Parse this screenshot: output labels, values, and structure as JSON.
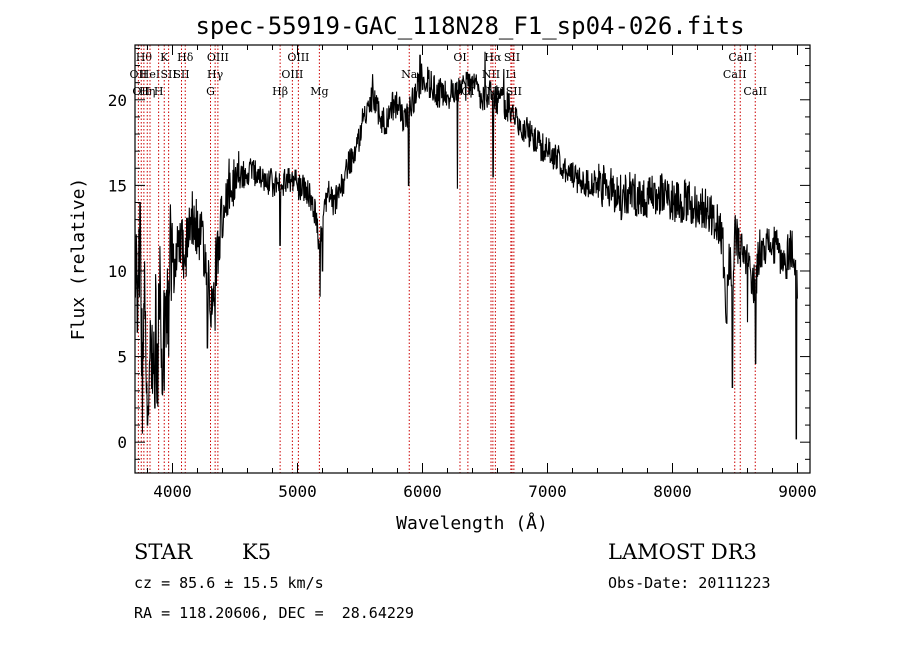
{
  "chart_data": {
    "type": "line",
    "title": "spec-55919-GAC_118N28_F1_sp04-026.fits",
    "xlabel": "Wavelength (Å)",
    "ylabel": "Flux (relative)",
    "xlim": [
      3700,
      9100
    ],
    "ylim": [
      -1.8,
      23.2
    ],
    "xticks": [
      4000,
      5000,
      6000,
      7000,
      8000,
      9000
    ],
    "yticks": [
      0,
      5,
      10,
      15,
      20
    ],
    "grid": false,
    "line_color": "#000000",
    "marker_color": "#cc0000",
    "spectrum_anchors": {
      "x": [
        3700,
        3720,
        3740,
        3760,
        3780,
        3800,
        3820,
        3840,
        3860,
        3880,
        3900,
        3920,
        3940,
        3960,
        3980,
        4000,
        4050,
        4100,
        4150,
        4200,
        4250,
        4300,
        4320,
        4340,
        4380,
        4420,
        4500,
        4600,
        4700,
        4800,
        4850,
        4900,
        5000,
        5100,
        5150,
        5180,
        5200,
        5250,
        5300,
        5400,
        5500,
        5550,
        5600,
        5650,
        5700,
        5750,
        5800,
        5850,
        5900,
        5950,
        6000,
        6050,
        6100,
        6200,
        6300,
        6400,
        6500,
        6560,
        6600,
        6700,
        6800,
        6900,
        7000,
        7100,
        7200,
        7300,
        7400,
        7500,
        7600,
        7700,
        7800,
        7900,
        8000,
        8100,
        8200,
        8300,
        8400,
        8430,
        8450,
        8480,
        8500,
        8540,
        8600,
        8660,
        8700,
        8800,
        8900,
        8950,
        9000
      ],
      "y": [
        12,
        9,
        11.5,
        4,
        9,
        2,
        7,
        3,
        8,
        4,
        9,
        5,
        10,
        7,
        11,
        10,
        12,
        11,
        13,
        12.5,
        11.5,
        9,
        7.5,
        10,
        12.5,
        14.5,
        15.5,
        15.8,
        15.5,
        15.2,
        14.8,
        15.3,
        15,
        14.5,
        13,
        11,
        13.5,
        14.5,
        14,
        16,
        18,
        19.5,
        20,
        19.2,
        18.5,
        19.5,
        19.8,
        18.5,
        19.5,
        20.5,
        21.5,
        21,
        20.5,
        20.2,
        20.5,
        21,
        20,
        20.5,
        20,
        19.5,
        18.5,
        17.5,
        17,
        16.5,
        15.5,
        15.2,
        15,
        14.8,
        14.5,
        14.5,
        14.2,
        14.5,
        14.2,
        14,
        13.8,
        13.5,
        12,
        7,
        11,
        9,
        12.5,
        11,
        10.5,
        9,
        11.5,
        11.5,
        10.5,
        11.5,
        9.5
      ]
    },
    "spectrum_dips": [
      {
        "x": 3760,
        "y": 0.5
      },
      {
        "x": 3800,
        "y": 1
      },
      {
        "x": 3860,
        "y": 2
      },
      {
        "x": 3935,
        "y": 3
      },
      {
        "x": 3970,
        "y": 5
      },
      {
        "x": 4280,
        "y": 5.5
      },
      {
        "x": 4340,
        "y": 6.5
      },
      {
        "x": 4861,
        "y": 11.5
      },
      {
        "x": 5180,
        "y": 8.5
      },
      {
        "x": 5200,
        "y": 10
      },
      {
        "x": 5890,
        "y": 15
      },
      {
        "x": 6280,
        "y": 14.8
      },
      {
        "x": 6565,
        "y": 15.5
      },
      {
        "x": 7590,
        "y": 13
      },
      {
        "x": 8430,
        "y": 7
      },
      {
        "x": 8480,
        "y": 3.2
      },
      {
        "x": 8600,
        "y": 7
      },
      {
        "x": 8665,
        "y": 4.6
      },
      {
        "x": 8990,
        "y": 0.2
      }
    ],
    "spectrum_spikes": [
      {
        "x": 3700,
        "y": 13
      },
      {
        "x": 3740,
        "y": 14
      },
      {
        "x": 4530,
        "y": 17
      },
      {
        "x": 5600,
        "y": 21.5
      },
      {
        "x": 5980,
        "y": 22.6
      },
      {
        "x": 6500,
        "y": 22.8
      },
      {
        "x": 6650,
        "y": 21.8
      }
    ],
    "lines": [
      {
        "x": 3727,
        "label": "OII",
        "row": 2
      },
      {
        "x": 3750,
        "label": "OII",
        "row": 3
      },
      {
        "x": 3771,
        "label": "Hθ",
        "row": 1
      },
      {
        "x": 3798,
        "label": "Hη",
        "row": 3
      },
      {
        "x": 3820,
        "label": "HeI",
        "row": 2
      },
      {
        "x": 3889,
        "label": "H",
        "row": 3
      },
      {
        "x": 3934,
        "label": "K",
        "row": 1
      },
      {
        "x": 3969,
        "label": "SII",
        "row": 2
      },
      {
        "x": 4072,
        "label": "SII",
        "row": 2
      },
      {
        "x": 4102,
        "label": "Hδ",
        "row": 1
      },
      {
        "x": 4304,
        "label": "G",
        "row": 3
      },
      {
        "x": 4341,
        "label": "Hγ",
        "row": 2
      },
      {
        "x": 4363,
        "label": "OIII",
        "row": 1
      },
      {
        "x": 4861,
        "label": "Hβ",
        "row": 3
      },
      {
        "x": 4959,
        "label": "OIII",
        "row": 2
      },
      {
        "x": 5007,
        "label": "OIII",
        "row": 1
      },
      {
        "x": 5175,
        "label": "Mg",
        "row": 3
      },
      {
        "x": 5894,
        "label": "Na",
        "row": 2
      },
      {
        "x": 6300,
        "label": "OI",
        "row": 1
      },
      {
        "x": 6363,
        "label": "OI",
        "row": 3
      },
      {
        "x": 6548,
        "label": "NII",
        "row": 2
      },
      {
        "x": 6563,
        "label": "Hα",
        "row": 1
      },
      {
        "x": 6583,
        "label": "NII",
        "row": 3
      },
      {
        "x": 6707,
        "label": "Li",
        "row": 2
      },
      {
        "x": 6716,
        "label": "SII",
        "row": 1
      },
      {
        "x": 6731,
        "label": "SII",
        "row": 3
      },
      {
        "x": 8498,
        "label": "CaII",
        "row": 2
      },
      {
        "x": 8542,
        "label": "CaII",
        "row": 1
      },
      {
        "x": 8662,
        "label": "CaII",
        "row": 3
      }
    ]
  },
  "info": {
    "class": "STAR",
    "subclass": "K5",
    "cz": "cz = 85.6 ± 15.5 km/s",
    "coords": "RA = 118.20606, DEC =  28.64229",
    "survey": "LAMOST DR3",
    "obs_date": "Obs-Date: 20111223"
  }
}
